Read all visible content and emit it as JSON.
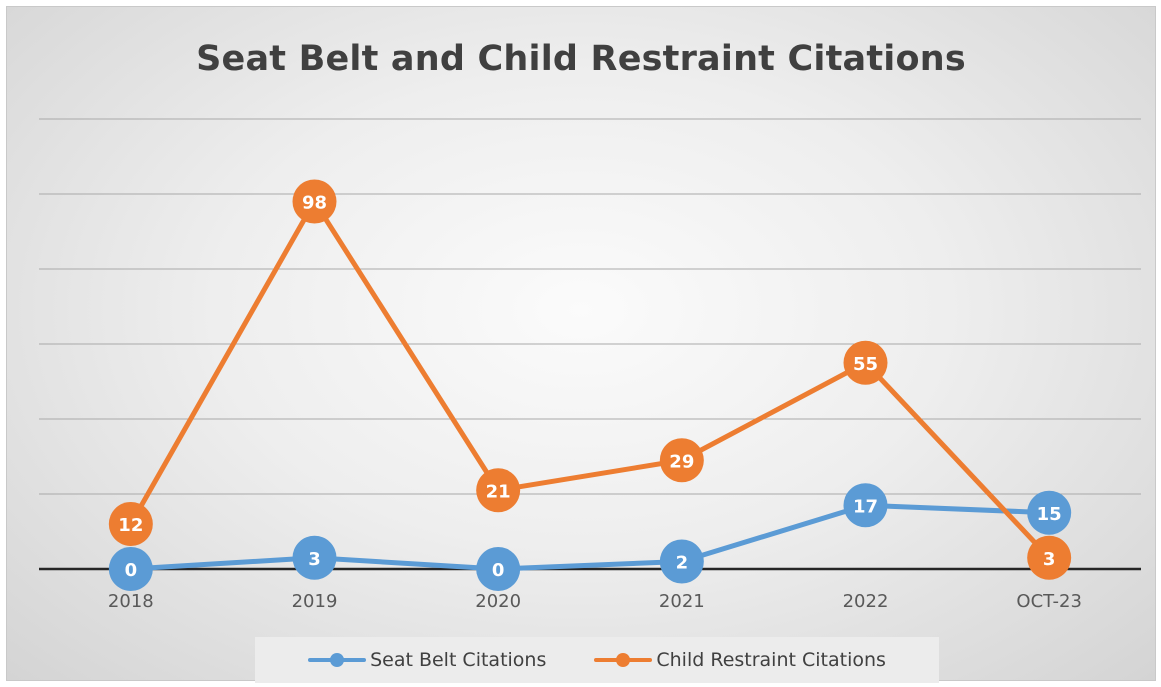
{
  "colors": {
    "seat_belt": "#5b9bd5",
    "child_restraint": "#ed7d31",
    "gridline": "#a9a9a9",
    "axis": "#262626",
    "tick_text": "#595959"
  },
  "chart_data": {
    "type": "line",
    "title": "Seat Belt and Child Restraint Citations",
    "categories": [
      "2018",
      "2019",
      "2020",
      "2021",
      "2022",
      "OCT-23"
    ],
    "series": [
      {
        "name": "Seat Belt Citations",
        "color": "#5b9bd5",
        "values": [
          0,
          3,
          0,
          2,
          17,
          15
        ]
      },
      {
        "name": "Child Restraint Citations",
        "color": "#ed7d31",
        "values": [
          12,
          98,
          21,
          29,
          55,
          3
        ]
      }
    ],
    "ylim": [
      0,
      120
    ],
    "gridline_step": 20,
    "grid": true,
    "data_labels": true,
    "legend_position": "bottom"
  }
}
